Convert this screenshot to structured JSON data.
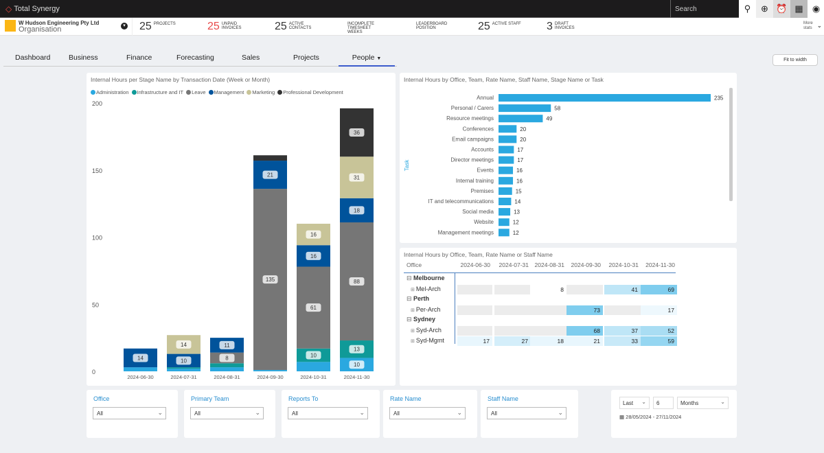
{
  "app": {
    "brand": "Total Synergy",
    "search_label": "Search"
  },
  "org": {
    "name": "W Hudson Engineering Pty Ltd",
    "type": "Organisation"
  },
  "stats": [
    {
      "num": "25",
      "label": "Projects",
      "red": false
    },
    {
      "num": "25",
      "label": "Unpaid Invoices",
      "red": true
    },
    {
      "num": "25",
      "label": "Active Contacts",
      "red": false
    },
    {
      "num": "",
      "label": "Incomplete Timesheet Weeks",
      "red": false
    },
    {
      "num": "",
      "label": "Leaderboard Position",
      "red": false
    },
    {
      "num": "25",
      "label": "Active Staff",
      "red": false
    },
    {
      "num": "3",
      "label": "Draft Invoices",
      "red": false
    }
  ],
  "more_stats": "More stats",
  "tabs": [
    "Dashboard",
    "Business",
    "Finance",
    "Forecasting",
    "Sales",
    "Projects",
    "People"
  ],
  "active_tab": "People",
  "fit_to_width": "Fit to width",
  "chart_data": [
    {
      "type": "bar",
      "stacked": true,
      "title": "Internal Hours per Stage Name by Transaction Date (Week or Month)",
      "categories": [
        "2024-06-30",
        "2024-07-31",
        "2024-08-31",
        "2024-09-30",
        "2024-10-31",
        "2024-11-30"
      ],
      "ylim": [
        0,
        200
      ],
      "yticks": [
        0,
        50,
        100,
        150,
        200
      ],
      "legend": "top-left",
      "series": [
        {
          "name": "Administration",
          "color": "#2aa8e0",
          "values": [
            3,
            2,
            3,
            1,
            7,
            10
          ]
        },
        {
          "name": "Infrastructure and IT",
          "color": "#0f9a98",
          "values": [
            0,
            1,
            3,
            0,
            10,
            13
          ]
        },
        {
          "name": "Leave",
          "color": "#767676",
          "values": [
            0,
            0,
            8,
            135,
            61,
            88
          ]
        },
        {
          "name": "Management",
          "color": "#00539b",
          "values": [
            14,
            10,
            11,
            21,
            16,
            18
          ]
        },
        {
          "name": "Marketing",
          "color": "#c8c498",
          "values": [
            0,
            14,
            0,
            0,
            16,
            31
          ]
        },
        {
          "name": "Professional Development",
          "color": "#333333",
          "values": [
            0,
            0,
            0,
            4,
            0,
            36
          ]
        }
      ],
      "labeled_min": 8
    },
    {
      "type": "bar",
      "orientation": "horizontal",
      "title": "Internal Hours by Office, Team, Rate Name, Staff Name, Stage Name or Task",
      "ylabel": "Task",
      "color": "#2aa8e0",
      "categories": [
        "Annual",
        "Personal / Carers",
        "Resource meetings",
        "Conferences",
        "Email campaigns",
        "Accounts",
        "Director meetings",
        "Events",
        "Internal training",
        "Premises",
        "IT and telecommunications",
        "Social media",
        "Website",
        "Management meetings"
      ],
      "values": [
        235,
        58,
        49,
        20,
        20,
        17,
        17,
        16,
        16,
        15,
        14,
        13,
        12,
        12
      ]
    }
  ],
  "matrix": {
    "title": "Internal Hours by Office, Team, Rate Name or Staff Name",
    "row_header": "Office",
    "columns": [
      "2024-06-30",
      "2024-07-31",
      "2024-08-31",
      "2024-09-30",
      "2024-10-31",
      "2024-11-30"
    ],
    "groups": [
      {
        "office": "Melbourne",
        "rows": [
          {
            "team": "Mel-Arch",
            "values": [
              null,
              null,
              8,
              null,
              41,
              69
            ]
          }
        ]
      },
      {
        "office": "Perth",
        "rows": [
          {
            "team": "Per-Arch",
            "values": [
              null,
              null,
              null,
              73,
              null,
              17
            ]
          }
        ]
      },
      {
        "office": "Sydney",
        "rows": [
          {
            "team": "Syd-Arch",
            "values": [
              null,
              null,
              null,
              68,
              37,
              52
            ]
          },
          {
            "team": "Syd-Mgmt",
            "values": [
              17,
              27,
              18,
              21,
              33,
              59
            ]
          }
        ]
      }
    ]
  },
  "filters": [
    {
      "label": "Office",
      "value": "All"
    },
    {
      "label": "Primary Team",
      "value": "All"
    },
    {
      "label": "Reports To",
      "value": "All"
    },
    {
      "label": "Rate Name",
      "value": "All"
    },
    {
      "label": "Staff Name",
      "value": "All"
    }
  ],
  "date_filter": {
    "mode": "Last",
    "count": "6",
    "unit": "Months",
    "range": "28/05/2024 - 27/11/2024"
  }
}
